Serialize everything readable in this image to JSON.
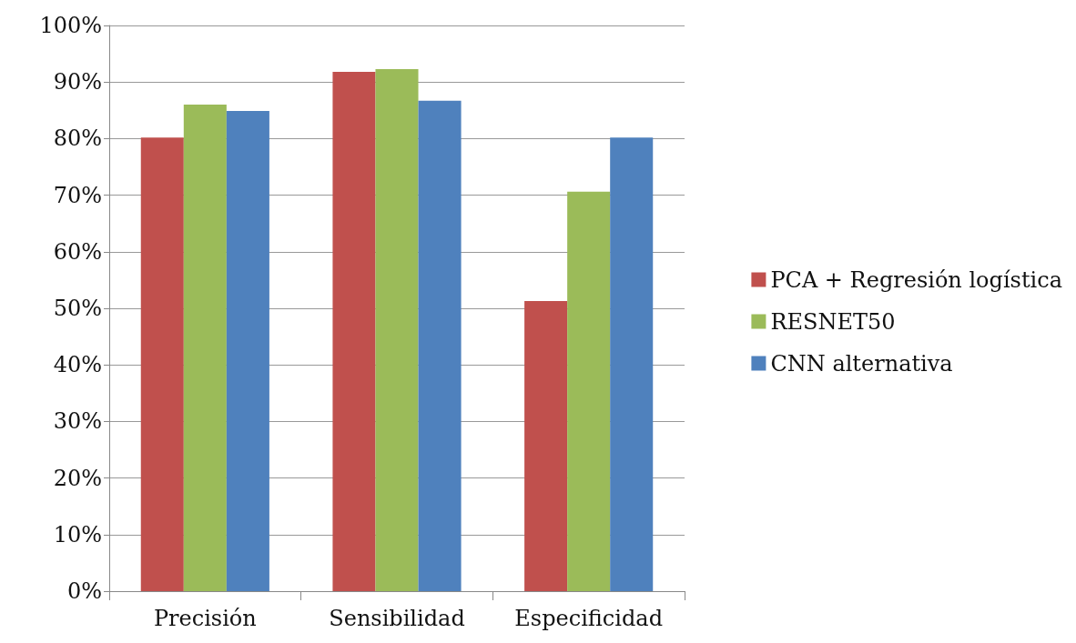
{
  "chart_data": {
    "type": "bar",
    "categories": [
      "Precisión",
      "Sensibilidad",
      "Especificidad"
    ],
    "series": [
      {
        "name": "PCA + Regresión logística",
        "color": "#c0504d",
        "values": [
          80.2,
          91.8,
          51.3
        ]
      },
      {
        "name": "RESNET50",
        "color": "#9bbb59",
        "values": [
          86.0,
          92.3,
          70.6
        ]
      },
      {
        "name": "CNN alternativa",
        "color": "#4f81bd",
        "values": [
          84.9,
          86.7,
          80.2
        ]
      }
    ],
    "ylim": [
      0,
      100
    ],
    "yticks": [
      {
        "value": 0,
        "label": "0%"
      },
      {
        "value": 10,
        "label": "10%"
      },
      {
        "value": 20,
        "label": "20%"
      },
      {
        "value": 30,
        "label": "30%"
      },
      {
        "value": 40,
        "label": "40%"
      },
      {
        "value": 50,
        "label": "50%"
      },
      {
        "value": 60,
        "label": "60%"
      },
      {
        "value": 70,
        "label": "70%"
      },
      {
        "value": 80,
        "label": "80%"
      },
      {
        "value": 90,
        "label": "90%"
      },
      {
        "value": 100,
        "label": "100%"
      }
    ],
    "grid": "y",
    "legend": "right"
  }
}
